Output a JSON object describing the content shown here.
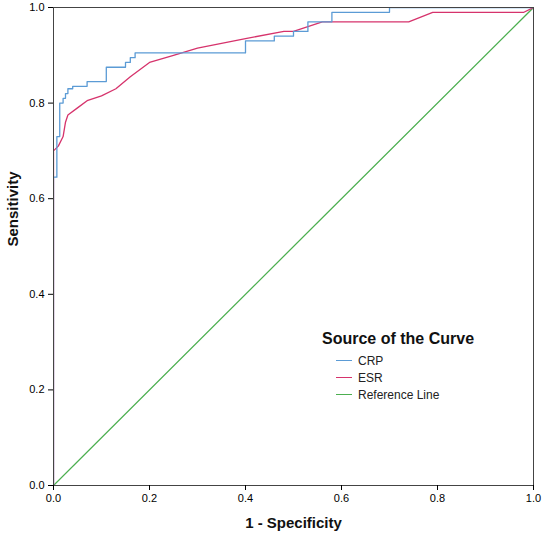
{
  "chart_data": {
    "type": "line",
    "x_label": "1 - Specificity",
    "y_label": "Sensitivity",
    "legend_title": "Source of the Curve",
    "legend": "lower right",
    "grid": false,
    "xlim": [
      0,
      1
    ],
    "ylim": [
      0,
      1
    ],
    "xticks": [
      {
        "value": 0,
        "label": "0.0"
      },
      {
        "value": 0.2,
        "label": "0.2"
      },
      {
        "value": 0.4,
        "label": "0.4"
      },
      {
        "value": 0.6,
        "label": "0.6"
      },
      {
        "value": 0.8,
        "label": "0.8"
      },
      {
        "value": 1,
        "label": "1.0"
      }
    ],
    "yticks": [
      {
        "value": 0,
        "label": "0.0"
      },
      {
        "value": 0.2,
        "label": "0.2"
      },
      {
        "value": 0.4,
        "label": "0.4"
      },
      {
        "value": 0.6,
        "label": "0.6"
      },
      {
        "value": 0.8,
        "label": "0.8"
      },
      {
        "value": 1,
        "label": "1.0"
      }
    ],
    "series": [
      {
        "name": "CRP",
        "color": "#5b9bd5",
        "line_style": "solid",
        "x": [
          0,
          0,
          0.007,
          0.007,
          0.013,
          0.013,
          0.02,
          0.02,
          0.025,
          0.025,
          0.03,
          0.03,
          0.04,
          0.04,
          0.07,
          0.07,
          0.11,
          0.11,
          0.15,
          0.15,
          0.16,
          0.16,
          0.17,
          0.17,
          0.4,
          0.4,
          0.46,
          0.46,
          0.5,
          0.5,
          0.53,
          0.53,
          0.58,
          0.58,
          0.7,
          0.7,
          1
        ],
        "values": [
          0,
          0.645,
          0.645,
          0.73,
          0.73,
          0.8,
          0.8,
          0.81,
          0.81,
          0.82,
          0.82,
          0.83,
          0.83,
          0.835,
          0.835,
          0.845,
          0.845,
          0.875,
          0.875,
          0.885,
          0.885,
          0.895,
          0.895,
          0.905,
          0.905,
          0.93,
          0.93,
          0.94,
          0.94,
          0.95,
          0.95,
          0.97,
          0.97,
          0.99,
          0.99,
          1,
          1
        ]
      },
      {
        "name": "ESR",
        "color": "#d6336c",
        "line_style": "solid",
        "x": [
          0,
          0,
          0.01,
          0.02,
          0.025,
          0.03,
          0.05,
          0.07,
          0.1,
          0.13,
          0.16,
          0.2,
          0.25,
          0.3,
          0.4,
          0.48,
          0.5,
          0.56,
          0.74,
          0.79,
          0.98,
          1
        ],
        "values": [
          0,
          0.7,
          0.71,
          0.73,
          0.76,
          0.775,
          0.79,
          0.805,
          0.815,
          0.83,
          0.855,
          0.885,
          0.9,
          0.915,
          0.935,
          0.95,
          0.95,
          0.97,
          0.97,
          0.99,
          0.99,
          1
        ]
      },
      {
        "name": "Reference Line",
        "color": "#4caf50",
        "line_style": "solid",
        "x": [
          0,
          1
        ],
        "values": [
          0,
          1
        ]
      }
    ]
  }
}
